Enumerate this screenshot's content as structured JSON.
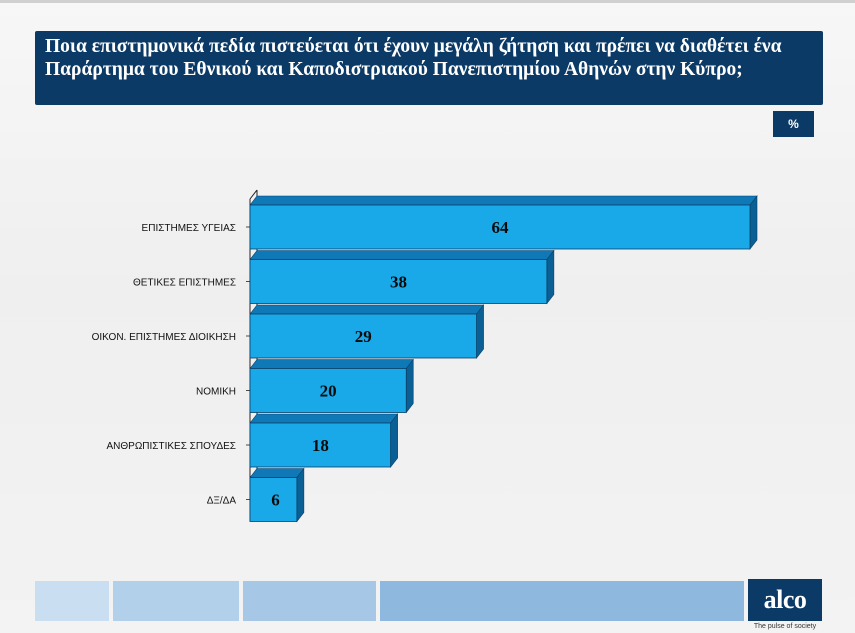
{
  "header": {
    "title": "Ποια επιστημονικά πεδία πιστεύεται ότι έχουν μεγάλη ζήτηση και πρέπει να διαθέτει ένα Παράρτημα του Εθνικού και Καποδιστριακού Πανεπιστημίου Αθηνών στην Κύπρο;",
    "unit": "%"
  },
  "colors": {
    "title_bg": "#0b3a66",
    "bar_front": "#1aa9e8",
    "bar_top": "#0f79b8",
    "bar_side": "#0a5f94",
    "footer_segments": [
      "#c9dff1",
      "#b3d0ea",
      "#a6c7e6",
      "#8fb8de"
    ]
  },
  "chart_data": {
    "type": "bar",
    "orientation": "horizontal",
    "style": "3d",
    "categories": [
      "ΕΠΙΣΤΗΜΕΣ ΥΓΕΙΑΣ",
      "ΘΕΤΙΚΕΣ ΕΠΙΣΤΗΜΕΣ",
      "ΟΙΚΟΝ. ΕΠΙΣΤΗΜΕΣ ΔΙΟΙΚΗΣΗ",
      "ΝΟΜΙΚΗ",
      "ΑΝΘΡΩΠΙΣΤΙΚΕΣ ΣΠΟΥΔΕΣ",
      "ΔΞ/ΔΑ"
    ],
    "values": [
      64,
      38,
      29,
      20,
      18,
      6
    ],
    "value_labels": [
      "64",
      "38",
      "29",
      "20",
      "18",
      "6"
    ],
    "xlim": [
      0,
      64
    ],
    "grid": false,
    "legend": "none"
  },
  "logo": {
    "text": "alco",
    "tagline": "The pulse of society"
  }
}
